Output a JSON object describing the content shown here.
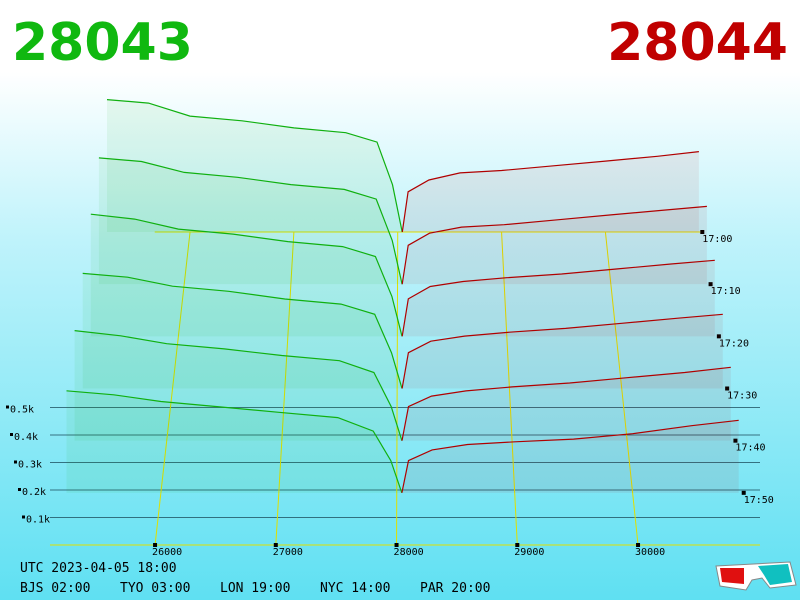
{
  "header": {
    "bid": "28043",
    "ask": "28044"
  },
  "chart_data": {
    "type": "depth3d",
    "xlim": [
      25130,
      31010
    ],
    "xticks": [
      26000,
      27000,
      28000,
      29000,
      30000
    ],
    "zticks": [
      {
        "value": 100,
        "label": "0.1k"
      },
      {
        "value": 200,
        "label": "0.2k"
      },
      {
        "value": 300,
        "label": "0.3k"
      },
      {
        "value": 400,
        "label": "0.4k"
      },
      {
        "value": 500,
        "label": "0.5k"
      }
    ],
    "times": [
      "17:00",
      "17:10",
      "17:20",
      "17:30",
      "17:40",
      "17:50"
    ],
    "bid_color": "#10b010",
    "ask_color": "#b00000",
    "bid_prices": [
      25200,
      25600,
      26000,
      26500,
      27000,
      27500,
      27800,
      27950,
      28043
    ],
    "ask_prices": [
      28044,
      28100,
      28300,
      28600,
      29000,
      29500,
      30000,
      30500,
      30900
    ],
    "bid_depth": [
      [
        560,
        545,
        490,
        470,
        440,
        420,
        380,
        200,
        0
      ],
      [
        520,
        505,
        460,
        440,
        410,
        390,
        350,
        180,
        0
      ],
      [
        490,
        470,
        430,
        410,
        380,
        360,
        320,
        160,
        0
      ],
      [
        450,
        435,
        400,
        380,
        350,
        330,
        290,
        140,
        0
      ],
      [
        420,
        400,
        370,
        350,
        325,
        305,
        260,
        130,
        0
      ],
      [
        380,
        365,
        340,
        320,
        300,
        280,
        230,
        120,
        0
      ]
    ],
    "ask_depth": [
      [
        0,
        170,
        220,
        250,
        260,
        280,
        300,
        320,
        340
      ],
      [
        0,
        160,
        210,
        235,
        245,
        265,
        285,
        305,
        320
      ],
      [
        0,
        150,
        200,
        220,
        235,
        250,
        270,
        290,
        305
      ],
      [
        0,
        140,
        185,
        205,
        220,
        235,
        255,
        275,
        290
      ],
      [
        0,
        130,
        170,
        190,
        205,
        220,
        240,
        260,
        280
      ],
      [
        0,
        120,
        160,
        180,
        190,
        200,
        220,
        250,
        270
      ]
    ]
  },
  "footer": {
    "utc": "UTC 2023-04-05 18:00",
    "cities": [
      "BJS 02:00",
      "TYO 03:00",
      "LON 19:00",
      "NYC 14:00",
      "PAR 20:00"
    ]
  }
}
